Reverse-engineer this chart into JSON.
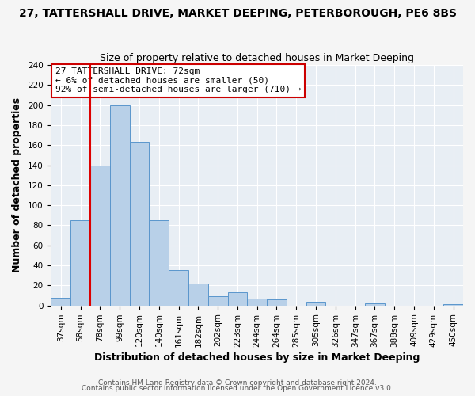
{
  "title": "27, TATTERSHALL DRIVE, MARKET DEEPING, PETERBOROUGH, PE6 8BS",
  "subtitle": "Size of property relative to detached houses in Market Deeping",
  "xlabel": "Distribution of detached houses by size in Market Deeping",
  "ylabel": "Number of detached properties",
  "bar_labels": [
    "37sqm",
    "58sqm",
    "78sqm",
    "99sqm",
    "120sqm",
    "140sqm",
    "161sqm",
    "182sqm",
    "202sqm",
    "223sqm",
    "244sqm",
    "264sqm",
    "285sqm",
    "305sqm",
    "326sqm",
    "347sqm",
    "367sqm",
    "388sqm",
    "409sqm",
    "429sqm",
    "450sqm"
  ],
  "bar_values": [
    8,
    85,
    140,
    200,
    163,
    85,
    35,
    22,
    9,
    13,
    7,
    6,
    0,
    4,
    0,
    0,
    2,
    0,
    0,
    0,
    1
  ],
  "bar_color": "#b8d0e8",
  "bar_edge_color": "#5a96cc",
  "annotation_title": "27 TATTERSHALL DRIVE: 72sqm",
  "annotation_line1": "← 6% of detached houses are smaller (50)",
  "annotation_line2": "92% of semi-detached houses are larger (710) →",
  "annotation_box_color": "#ffffff",
  "annotation_box_edge": "#cc0000",
  "ylim": [
    0,
    240
  ],
  "yticks": [
    0,
    20,
    40,
    60,
    80,
    100,
    120,
    140,
    160,
    180,
    200,
    220,
    240
  ],
  "footer1": "Contains HM Land Registry data © Crown copyright and database right 2024.",
  "footer2": "Contains public sector information licensed under the Open Government Licence v3.0.",
  "plot_bg_color": "#e8eef4",
  "fig_bg_color": "#f5f5f5",
  "grid_color": "#ffffff",
  "title_fontsize": 10,
  "subtitle_fontsize": 9,
  "axis_label_fontsize": 9,
  "tick_fontsize": 7.5,
  "annotation_fontsize": 8,
  "footer_fontsize": 6.5
}
